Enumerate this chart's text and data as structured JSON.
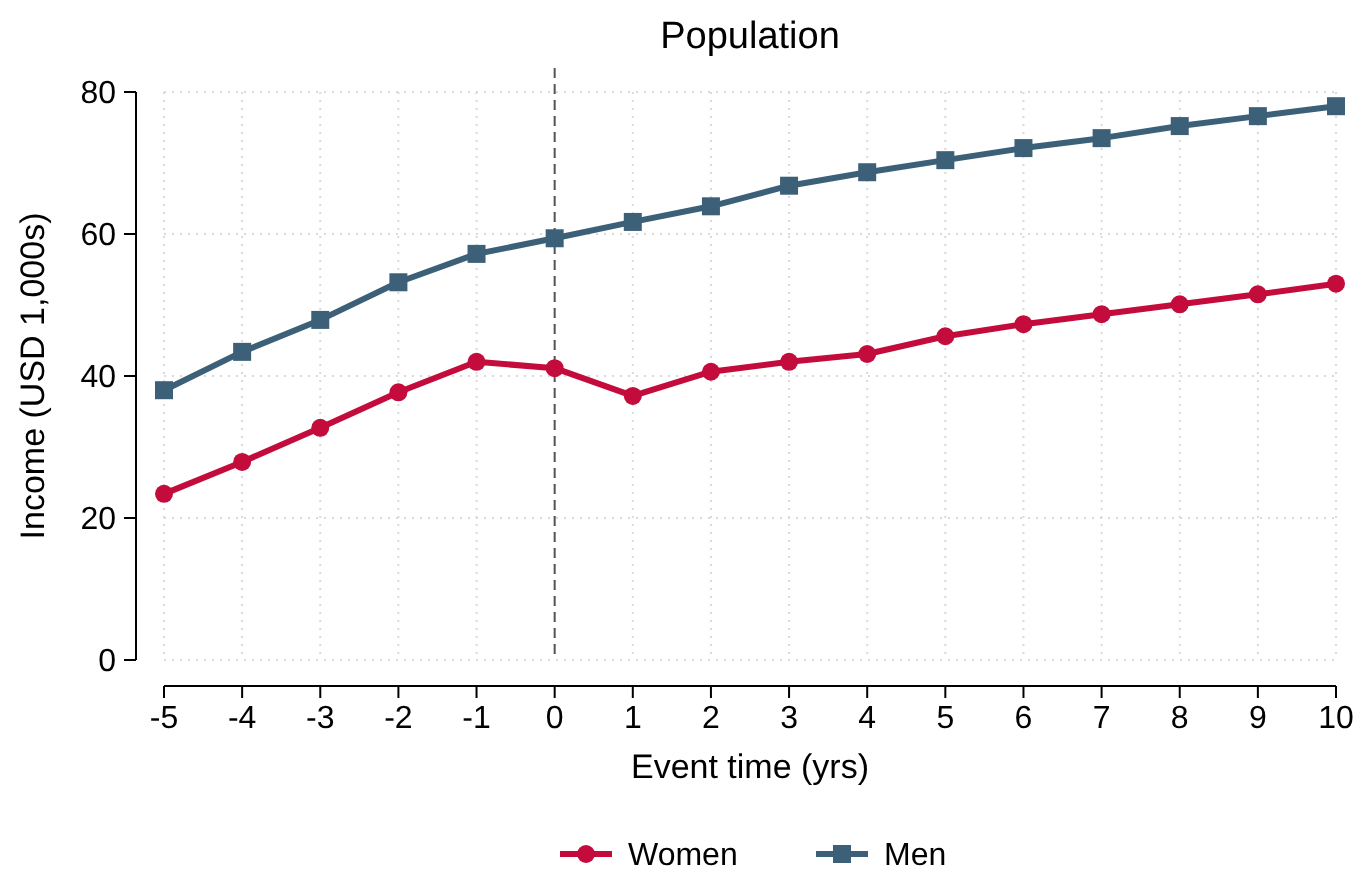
{
  "chart_data": {
    "type": "line",
    "title": "Population",
    "xlabel": "Event time (yrs)",
    "ylabel": "Income (USD 1,000s)",
    "x": [
      -5,
      -4,
      -3,
      -2,
      -1,
      0,
      1,
      2,
      3,
      4,
      5,
      6,
      7,
      8,
      9,
      10
    ],
    "xlim": [
      -5,
      10
    ],
    "xticks": [
      -5,
      -4,
      -3,
      -2,
      -1,
      0,
      1,
      2,
      3,
      4,
      5,
      6,
      7,
      8,
      9,
      10
    ],
    "ylim": [
      0,
      80
    ],
    "yticks": [
      0,
      20,
      40,
      60,
      80
    ],
    "grid": true,
    "legend": "bottom",
    "line_style": "solid",
    "ref_lines": [
      {
        "axis": "x",
        "value": 0,
        "color": "#555555",
        "line_style": "dashed"
      }
    ],
    "series": [
      {
        "name": "Women",
        "color": "#c30b3c",
        "marker": "circle",
        "values": [
          23.4,
          27.9,
          32.7,
          37.7,
          42,
          41.1,
          37.2,
          40.6,
          42,
          43.1,
          45.6,
          47.3,
          48.7,
          50.1,
          51.5,
          53
        ]
      },
      {
        "name": "Men",
        "color": "#3d6079",
        "marker": "square",
        "values": [
          38,
          43.4,
          47.9,
          53.2,
          57.2,
          59.4,
          61.7,
          63.9,
          66.8,
          68.7,
          70.4,
          72.1,
          73.5,
          75.2,
          76.6,
          78
        ]
      }
    ]
  }
}
